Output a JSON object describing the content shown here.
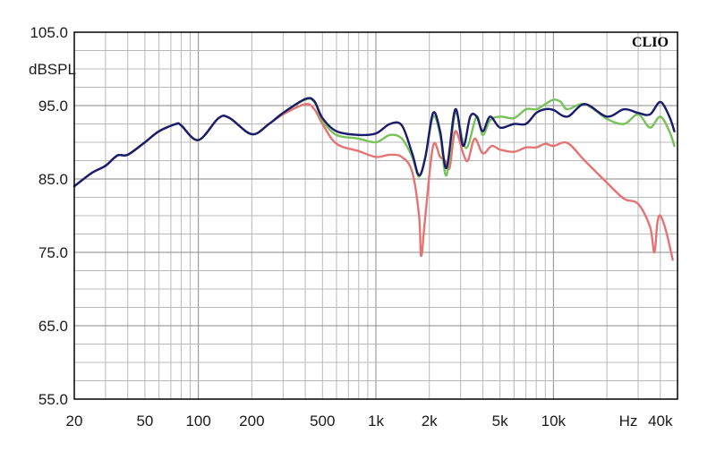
{
  "chart_data": {
    "type": "line",
    "brand_label": "CLIO",
    "ylabel": "dBSPL",
    "xlabel": "Hz",
    "x_scale": "log",
    "xlim": [
      20,
      50000
    ],
    "ylim": [
      55,
      105
    ],
    "grid": true,
    "y_ticks": [
      {
        "value": 105,
        "label": "105.0"
      },
      {
        "value": 95,
        "label": "95.0"
      },
      {
        "value": 85,
        "label": "85.0"
      },
      {
        "value": 75,
        "label": "75.0"
      },
      {
        "value": 65,
        "label": "65.0"
      },
      {
        "value": 55,
        "label": "55.0"
      }
    ],
    "x_ticks": [
      {
        "value": 20,
        "label": "20"
      },
      {
        "value": 50,
        "label": "50"
      },
      {
        "value": 100,
        "label": "100"
      },
      {
        "value": 200,
        "label": "200"
      },
      {
        "value": 500,
        "label": "500"
      },
      {
        "value": 1000,
        "label": "1k"
      },
      {
        "value": 2000,
        "label": "2k"
      },
      {
        "value": 5000,
        "label": "5k"
      },
      {
        "value": 10000,
        "label": "10k"
      },
      {
        "value": 40000,
        "label": "40k"
      }
    ],
    "series": [
      {
        "color": "#e57373",
        "points": [
          [
            20,
            84
          ],
          [
            25,
            85.8
          ],
          [
            30,
            86.8
          ],
          [
            35,
            88.2
          ],
          [
            40,
            88.3
          ],
          [
            50,
            90
          ],
          [
            60,
            91.5
          ],
          [
            75,
            92.5
          ],
          [
            80,
            92.3
          ],
          [
            100,
            90.3
          ],
          [
            130,
            93.3
          ],
          [
            150,
            93.3
          ],
          [
            200,
            91.1
          ],
          [
            250,
            92.5
          ],
          [
            300,
            93.8
          ],
          [
            400,
            95.2
          ],
          [
            450,
            94.5
          ],
          [
            500,
            92.5
          ],
          [
            600,
            89.8
          ],
          [
            800,
            88.8
          ],
          [
            1000,
            88
          ],
          [
            1200,
            88.3
          ],
          [
            1400,
            88
          ],
          [
            1600,
            86
          ],
          [
            1750,
            80
          ],
          [
            1800,
            74.5
          ],
          [
            1900,
            80
          ],
          [
            2100,
            89.5
          ],
          [
            2300,
            88
          ],
          [
            2450,
            87.5
          ],
          [
            2600,
            86.5
          ],
          [
            2800,
            91.5
          ],
          [
            3100,
            88.5
          ],
          [
            3300,
            87.5
          ],
          [
            3600,
            90.5
          ],
          [
            4000,
            88.5
          ],
          [
            4500,
            89.5
          ],
          [
            5000,
            89
          ],
          [
            6000,
            88.7
          ],
          [
            7000,
            89.3
          ],
          [
            8000,
            89.3
          ],
          [
            9000,
            89.8
          ],
          [
            10000,
            89.5
          ],
          [
            12000,
            89.9
          ],
          [
            15000,
            87.5
          ],
          [
            20000,
            84.5
          ],
          [
            25000,
            82.3
          ],
          [
            30000,
            81.6
          ],
          [
            35000,
            78.5
          ],
          [
            37000,
            75
          ],
          [
            38500,
            79
          ],
          [
            40000,
            80
          ],
          [
            43000,
            78
          ],
          [
            47000,
            74
          ]
        ]
      },
      {
        "color": "#78c25a",
        "points": [
          [
            20,
            84
          ],
          [
            25,
            85.8
          ],
          [
            30,
            86.8
          ],
          [
            35,
            88.2
          ],
          [
            40,
            88.3
          ],
          [
            50,
            90
          ],
          [
            60,
            91.5
          ],
          [
            75,
            92.5
          ],
          [
            80,
            92.3
          ],
          [
            100,
            90.3
          ],
          [
            130,
            93.3
          ],
          [
            150,
            93.3
          ],
          [
            200,
            91.1
          ],
          [
            250,
            92.5
          ],
          [
            300,
            94
          ],
          [
            400,
            95.8
          ],
          [
            450,
            95.5
          ],
          [
            500,
            93
          ],
          [
            600,
            91
          ],
          [
            800,
            90.5
          ],
          [
            1000,
            90
          ],
          [
            1200,
            91
          ],
          [
            1400,
            90.5
          ],
          [
            1600,
            88
          ],
          [
            1750,
            85.3
          ],
          [
            1900,
            88
          ],
          [
            2100,
            93.5
          ],
          [
            2300,
            91
          ],
          [
            2500,
            85.5
          ],
          [
            2800,
            94
          ],
          [
            3100,
            90
          ],
          [
            3300,
            89.5
          ],
          [
            3700,
            93.5
          ],
          [
            4000,
            91
          ],
          [
            4400,
            93
          ],
          [
            5000,
            93.5
          ],
          [
            6000,
            93.3
          ],
          [
            7000,
            94.5
          ],
          [
            8000,
            94.5
          ],
          [
            9000,
            95.2
          ],
          [
            10000,
            95.8
          ],
          [
            11000,
            95.5
          ],
          [
            12000,
            94.5
          ],
          [
            15000,
            95.2
          ],
          [
            20000,
            93.2
          ],
          [
            25000,
            92.5
          ],
          [
            30000,
            93.8
          ],
          [
            35000,
            92
          ],
          [
            40000,
            93.5
          ],
          [
            45000,
            91.5
          ],
          [
            48000,
            89.5
          ]
        ]
      },
      {
        "color": "#1a1a6e",
        "points": [
          [
            20,
            84
          ],
          [
            25,
            85.8
          ],
          [
            30,
            86.8
          ],
          [
            35,
            88.2
          ],
          [
            40,
            88.3
          ],
          [
            50,
            90
          ],
          [
            60,
            91.5
          ],
          [
            75,
            92.5
          ],
          [
            80,
            92.3
          ],
          [
            100,
            90.3
          ],
          [
            130,
            93.3
          ],
          [
            150,
            93.3
          ],
          [
            200,
            91.1
          ],
          [
            250,
            92.5
          ],
          [
            300,
            94
          ],
          [
            400,
            95.9
          ],
          [
            450,
            95.6
          ],
          [
            500,
            93.3
          ],
          [
            600,
            91.5
          ],
          [
            800,
            91
          ],
          [
            1000,
            91.2
          ],
          [
            1200,
            92.5
          ],
          [
            1400,
            92.3
          ],
          [
            1600,
            88.5
          ],
          [
            1750,
            85.5
          ],
          [
            1900,
            88
          ],
          [
            2100,
            94
          ],
          [
            2300,
            91.5
          ],
          [
            2500,
            86.5
          ],
          [
            2800,
            94.5
          ],
          [
            3100,
            89.5
          ],
          [
            3400,
            93.5
          ],
          [
            3700,
            93.5
          ],
          [
            4000,
            91.5
          ],
          [
            4400,
            93.5
          ],
          [
            5000,
            92
          ],
          [
            6000,
            92.5
          ],
          [
            7000,
            92.5
          ],
          [
            8000,
            94
          ],
          [
            9000,
            94.5
          ],
          [
            10000,
            94.4
          ],
          [
            12000,
            93.5
          ],
          [
            15000,
            95.2
          ],
          [
            20000,
            93.5
          ],
          [
            25000,
            94.5
          ],
          [
            30000,
            94
          ],
          [
            35000,
            93.8
          ],
          [
            40000,
            95.5
          ],
          [
            45000,
            93.5
          ],
          [
            48000,
            91.5
          ]
        ]
      }
    ]
  }
}
